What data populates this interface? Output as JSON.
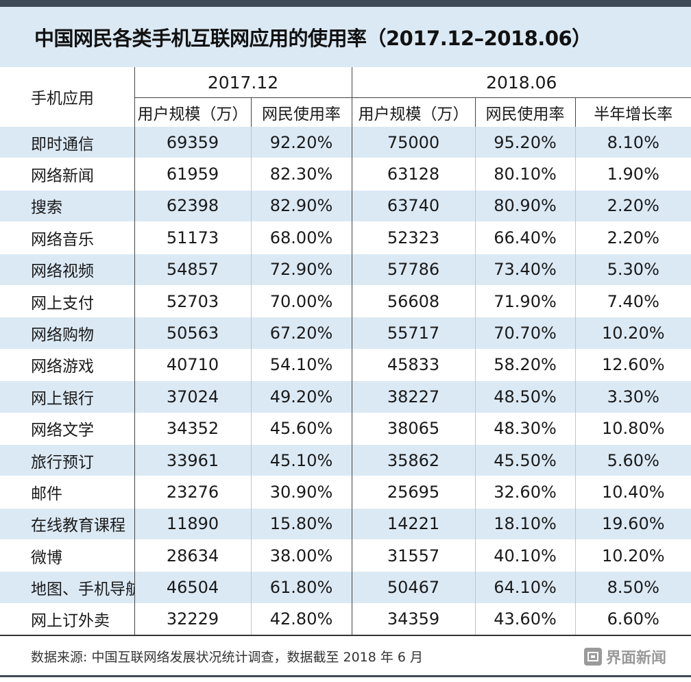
{
  "title": "中国网民各类手机互联网应用的使用率（2017.12–2018.06）",
  "table": {
    "app_header": "手机应用",
    "periods": [
      "2017.12",
      "2018.06"
    ],
    "subheaders": [
      "用户规模（万）",
      "网民使用率",
      "用户规模（万）",
      "网民使用率",
      "半年增长率"
    ],
    "rows": [
      {
        "name": "即时通信",
        "values": [
          "69359",
          "92.20%",
          "75000",
          "95.20%",
          "8.10%"
        ]
      },
      {
        "name": "网络新闻",
        "values": [
          "61959",
          "82.30%",
          "63128",
          "80.10%",
          "1.90%"
        ]
      },
      {
        "name": "搜索",
        "values": [
          "62398",
          "82.90%",
          "63740",
          "80.90%",
          "2.20%"
        ]
      },
      {
        "name": "网络音乐",
        "values": [
          "51173",
          "68.00%",
          "52323",
          "66.40%",
          "2.20%"
        ]
      },
      {
        "name": "网络视频",
        "values": [
          "54857",
          "72.90%",
          "57786",
          "73.40%",
          "5.30%"
        ]
      },
      {
        "name": "网上支付",
        "values": [
          "52703",
          "70.00%",
          "56608",
          "71.90%",
          "7.40%"
        ]
      },
      {
        "name": "网络购物",
        "values": [
          "50563",
          "67.20%",
          "55717",
          "70.70%",
          "10.20%"
        ]
      },
      {
        "name": "网络游戏",
        "values": [
          "40710",
          "54.10%",
          "45833",
          "58.20%",
          "12.60%"
        ]
      },
      {
        "name": "网上银行",
        "values": [
          "37024",
          "49.20%",
          "38227",
          "48.50%",
          "3.30%"
        ]
      },
      {
        "name": "网络文学",
        "values": [
          "34352",
          "45.60%",
          "38065",
          "48.30%",
          "10.80%"
        ]
      },
      {
        "name": "旅行预订",
        "values": [
          "33961",
          "45.10%",
          "35862",
          "45.50%",
          "5.60%"
        ]
      },
      {
        "name": "邮件",
        "values": [
          "23276",
          "30.90%",
          "25695",
          "32.60%",
          "10.40%"
        ]
      },
      {
        "name": "在线教育课程",
        "values": [
          "11890",
          "15.80%",
          "14221",
          "18.10%",
          "19.60%"
        ]
      },
      {
        "name": "微博",
        "values": [
          "28634",
          "38.00%",
          "31557",
          "40.10%",
          "10.20%"
        ]
      },
      {
        "name": "地图、手机导航",
        "values": [
          "46504",
          "61.80%",
          "50467",
          "64.10%",
          "8.50%"
        ]
      },
      {
        "name": "网上订外卖",
        "values": [
          "32229",
          "42.80%",
          "34359",
          "43.60%",
          "6.60%"
        ]
      }
    ]
  },
  "footer": {
    "source": "数据来源: 中国互联网络发展状况统计调查，数据截至 2018 年 6 月",
    "logo_text": "界面新闻",
    "logo_icon": "jiemian-logo-icon"
  },
  "colors": {
    "band": "#dbe9f4",
    "dark_bar": "#3f4a57",
    "logo_gray": "#9a9a9a"
  }
}
